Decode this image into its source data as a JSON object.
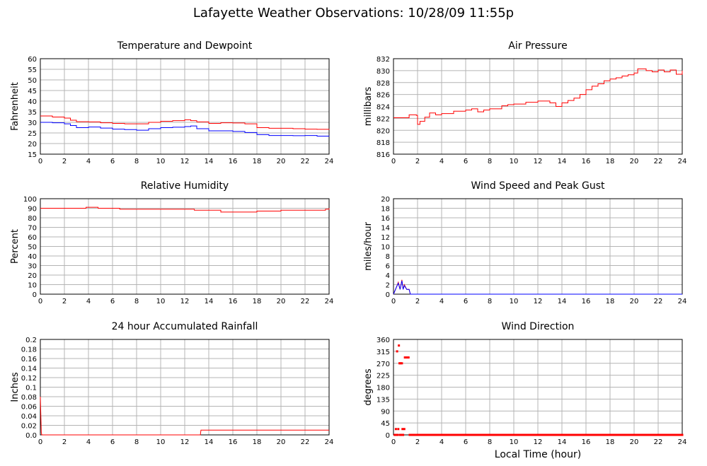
{
  "title": "Lafayette Weather Observations: 10/28/09 11:55p",
  "xlabel": "Local Time (hour)",
  "chart_data": [
    {
      "type": "line",
      "title": "Temperature and Dewpoint",
      "ylabel": "Fahrenheit",
      "xlim": [
        0,
        24
      ],
      "ylim": [
        15,
        60
      ],
      "xticks": [
        0,
        2,
        4,
        6,
        8,
        10,
        12,
        14,
        16,
        18,
        20,
        22,
        24
      ],
      "yticks": [
        15,
        20,
        25,
        30,
        35,
        40,
        45,
        50,
        55,
        60
      ],
      "grid": true,
      "series": [
        {
          "color": "#ff0000",
          "step": true,
          "x": [
            0,
            1,
            2,
            2.5,
            3,
            4,
            5,
            6,
            7,
            8,
            9,
            10,
            11,
            12,
            12.5,
            13,
            14,
            15,
            16,
            17,
            18,
            19,
            20,
            21,
            22,
            23,
            24
          ],
          "y": [
            33,
            32.5,
            32,
            31,
            30.3,
            30.2,
            29.8,
            29.5,
            29.3,
            29.3,
            30,
            30.5,
            30.8,
            31.2,
            30.8,
            30.2,
            29.5,
            29.8,
            29.7,
            29.3,
            27.5,
            27.2,
            27.2,
            27,
            26.8,
            26.7,
            26.5
          ]
        },
        {
          "color": "#0000ff",
          "step": true,
          "x": [
            0,
            1,
            2,
            2.5,
            3,
            4,
            5,
            6,
            7,
            8,
            9,
            10,
            11,
            12,
            12.5,
            13,
            14,
            15,
            16,
            17,
            18,
            19,
            20,
            21,
            22,
            23,
            24
          ],
          "y": [
            30,
            29.8,
            29.3,
            28.5,
            27.5,
            27.8,
            27.3,
            26.8,
            26.6,
            26.3,
            27,
            27.5,
            27.7,
            28,
            28.3,
            27,
            26,
            26,
            25.7,
            25.2,
            24.2,
            23.8,
            23.8,
            23.7,
            23.8,
            23.5,
            23.6
          ]
        }
      ]
    },
    {
      "type": "line",
      "title": "Air Pressure",
      "ylabel": "millibars",
      "xlim": [
        0,
        24
      ],
      "ylim": [
        816,
        832
      ],
      "xticks": [
        0,
        2,
        4,
        6,
        8,
        10,
        12,
        14,
        16,
        18,
        20,
        22,
        24
      ],
      "yticks": [
        816,
        818,
        820,
        822,
        824,
        826,
        828,
        830,
        832
      ],
      "grid": true,
      "series": [
        {
          "color": "#ff0000",
          "step": true,
          "x": [
            0,
            1,
            1.3,
            1.9,
            2.0,
            2.2,
            2.6,
            3,
            3.5,
            4,
            5,
            6,
            6.5,
            7,
            7.5,
            8,
            9,
            9.5,
            10,
            11,
            12,
            13,
            13.5,
            14,
            14.5,
            15,
            15.5,
            16,
            16.5,
            17,
            17.5,
            18,
            18.5,
            19,
            19.5,
            20,
            20.3,
            21,
            21.5,
            22,
            22.5,
            23,
            23.5,
            24
          ],
          "y": [
            822.1,
            822.1,
            822.6,
            822.5,
            821,
            821.5,
            822.2,
            822.9,
            822.6,
            822.8,
            823.2,
            823.4,
            823.6,
            823.1,
            823.4,
            823.6,
            824.1,
            824.3,
            824.4,
            824.7,
            824.9,
            824.6,
            824,
            824.6,
            825,
            825.4,
            826,
            826.8,
            827.4,
            827.8,
            828.3,
            828.6,
            828.8,
            829.1,
            829.3,
            829.6,
            830.3,
            830,
            829.8,
            830.1,
            829.8,
            830.1,
            829.4,
            830
          ]
        }
      ]
    },
    {
      "type": "line",
      "title": "Relative Humidity",
      "ylabel": "Percent",
      "xlim": [
        0,
        24
      ],
      "ylim": [
        0,
        100
      ],
      "xticks": [
        0,
        2,
        4,
        6,
        8,
        10,
        12,
        14,
        16,
        18,
        20,
        22,
        24
      ],
      "yticks": [
        0,
        10,
        20,
        30,
        40,
        50,
        60,
        70,
        80,
        90,
        100
      ],
      "grid": true,
      "series": [
        {
          "color": "#ff0000",
          "step": true,
          "x": [
            0,
            2,
            3.8,
            4.8,
            6.6,
            8,
            10,
            11.5,
            12.8,
            15,
            18,
            20,
            22,
            23.7,
            24
          ],
          "y": [
            90,
            90,
            91,
            90,
            89,
            89,
            89,
            89,
            88,
            86,
            87,
            88,
            88,
            89,
            90
          ]
        }
      ]
    },
    {
      "type": "line",
      "title": "Wind Speed and Peak Gust",
      "ylabel": "miles/hour",
      "xlim": [
        0,
        24
      ],
      "ylim": [
        0,
        20
      ],
      "xticks": [
        0,
        2,
        4,
        6,
        8,
        10,
        12,
        14,
        16,
        18,
        20,
        22,
        24
      ],
      "yticks": [
        0,
        2,
        4,
        6,
        8,
        10,
        12,
        14,
        16,
        18,
        20
      ],
      "grid": true,
      "series": [
        {
          "color": "#ff0000",
          "step": false,
          "x": [
            0,
            0.25,
            0.4,
            0.55,
            0.7,
            0.8,
            0.9,
            1.1,
            1.3,
            1.4,
            24
          ],
          "y": [
            0,
            1.5,
            2.5,
            1,
            3,
            1,
            2,
            1,
            1,
            0,
            0
          ]
        },
        {
          "color": "#0000ff",
          "step": false,
          "x": [
            0,
            0.25,
            0.4,
            0.55,
            0.7,
            0.8,
            0.9,
            1.1,
            1.3,
            1.4,
            24
          ],
          "y": [
            0,
            1.5,
            2.3,
            1,
            2.8,
            1,
            1.8,
            1,
            1,
            0,
            0
          ]
        }
      ]
    },
    {
      "type": "line",
      "title": "24 hour Accumulated Rainfall",
      "ylabel": "Inches",
      "xlim": [
        0,
        24
      ],
      "ylim": [
        0,
        0.2
      ],
      "xticks": [
        0,
        2,
        4,
        6,
        8,
        10,
        12,
        14,
        16,
        18,
        20,
        22,
        24
      ],
      "yticks": [
        0.0,
        0.02,
        0.04,
        0.06,
        0.08,
        0.1,
        0.12,
        0.14,
        0.16,
        0.18,
        0.2
      ],
      "ytick_labels": [
        "0.0",
        "0.02",
        "0.04",
        "0.06",
        "0.08",
        "0.1",
        "0.12",
        "0.14",
        "0.16",
        "0.18",
        "0.2"
      ],
      "grid": true,
      "series": [
        {
          "color": "#ff0000",
          "step": false,
          "x": [
            0,
            0.08,
            0.12,
            13.3,
            13.35,
            24
          ],
          "y": [
            0.08,
            0.005,
            0,
            0,
            0.01,
            0.01
          ]
        }
      ]
    },
    {
      "type": "scatter",
      "title": "Wind Direction",
      "ylabel": "degrees",
      "xlim": [
        0,
        24
      ],
      "ylim": [
        0,
        360
      ],
      "xticks": [
        0,
        2,
        4,
        6,
        8,
        10,
        12,
        14,
        16,
        18,
        20,
        22,
        24
      ],
      "yticks": [
        0,
        45,
        90,
        135,
        180,
        225,
        270,
        315,
        360
      ],
      "grid": true,
      "series": [
        {
          "color": "#ff0000",
          "points": [
            [
              0.3,
              315
            ],
            [
              0.45,
              337
            ],
            [
              0.5,
              270
            ],
            [
              0.6,
              270
            ],
            [
              0.7,
              270
            ],
            [
              0.2,
              22
            ],
            [
              0.4,
              22
            ],
            [
              0.75,
              22
            ],
            [
              0.9,
              22
            ],
            [
              0.95,
              292
            ],
            [
              1.05,
              292
            ],
            [
              1.15,
              292
            ],
            [
              1.25,
              292
            ],
            [
              0.1,
              0
            ],
            [
              0.25,
              0
            ],
            [
              0.35,
              0
            ],
            [
              0.55,
              0
            ],
            [
              0.65,
              0
            ],
            [
              0.8,
              0
            ],
            [
              1.35,
              0
            ],
            [
              1.6,
              0
            ],
            [
              2,
              0
            ],
            [
              3,
              0
            ],
            [
              4,
              0
            ],
            [
              5,
              0
            ],
            [
              6,
              0
            ],
            [
              7,
              0
            ],
            [
              8,
              0
            ],
            [
              9,
              0
            ],
            [
              10,
              0
            ],
            [
              11,
              0
            ],
            [
              12,
              0
            ],
            [
              13,
              0
            ],
            [
              14,
              0
            ],
            [
              15,
              0
            ],
            [
              16,
              0
            ],
            [
              17,
              0
            ],
            [
              18,
              0
            ],
            [
              19,
              0
            ],
            [
              20,
              0
            ],
            [
              21,
              0
            ],
            [
              22,
              0
            ],
            [
              23,
              0
            ],
            [
              24,
              0
            ]
          ],
          "fill_line_from": 1.3
        }
      ]
    }
  ]
}
